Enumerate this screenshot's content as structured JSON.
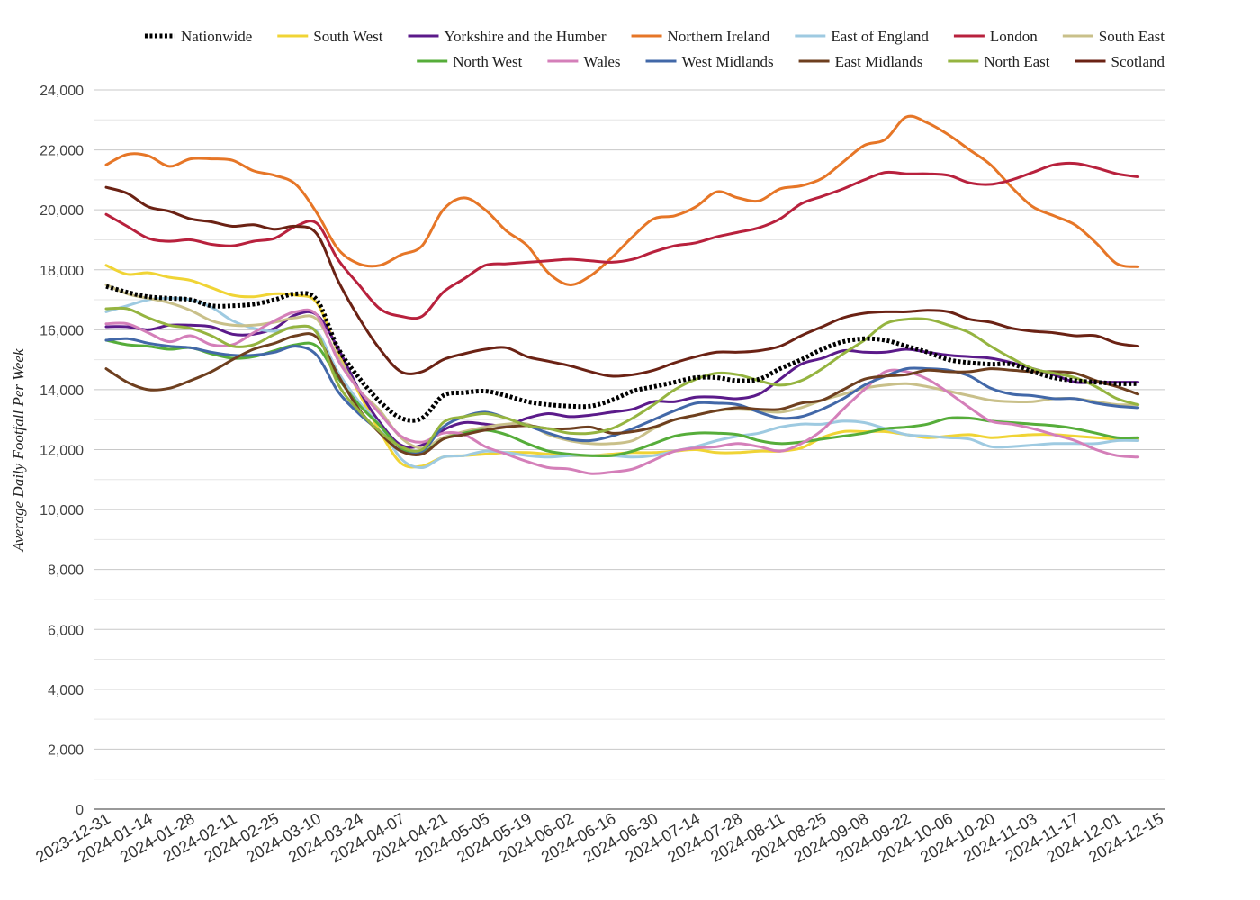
{
  "chart_data": {
    "type": "line",
    "ylabel": "Average Daily Footfall Per Week",
    "ylim": [
      0,
      24000
    ],
    "yticks": [
      0,
      2000,
      4000,
      6000,
      8000,
      10000,
      12000,
      14000,
      16000,
      18000,
      20000,
      22000,
      24000
    ],
    "ytick_labels": [
      "0",
      "2,000",
      "4,000",
      "6,000",
      "8,000",
      "10,000",
      "12,000",
      "14,000",
      "16,000",
      "18,000",
      "20,000",
      "22,000",
      "24,000"
    ],
    "grid": true,
    "legend_position": "top",
    "x_tick_labels": [
      "2023-12-31",
      "2024-01-14",
      "2024-01-28",
      "2024-02-11",
      "2024-02-25",
      "2024-03-10",
      "2024-03-24",
      "2024-04-07",
      "2024-04-21",
      "2024-05-05",
      "2024-05-19",
      "2024-06-02",
      "2024-06-16",
      "2024-06-30",
      "2024-07-14",
      "2024-07-28",
      "2024-08-11",
      "2024-08-25",
      "2024-09-08",
      "2024-09-22",
      "2024-10-06",
      "2024-10-20",
      "2024-11-03",
      "2024-11-17",
      "2024-12-01",
      "2024-12-15"
    ],
    "x": [
      "2023-12-31",
      "2024-01-07",
      "2024-01-14",
      "2024-01-21",
      "2024-01-28",
      "2024-02-04",
      "2024-02-11",
      "2024-02-18",
      "2024-02-25",
      "2024-03-03",
      "2024-03-10",
      "2024-03-17",
      "2024-03-24",
      "2024-03-31",
      "2024-04-07",
      "2024-04-14",
      "2024-04-21",
      "2024-04-28",
      "2024-05-05",
      "2024-05-12",
      "2024-05-19",
      "2024-05-26",
      "2024-06-02",
      "2024-06-09",
      "2024-06-16",
      "2024-06-23",
      "2024-06-30",
      "2024-07-07",
      "2024-07-14",
      "2024-07-21",
      "2024-07-28",
      "2024-08-04",
      "2024-08-11",
      "2024-08-18",
      "2024-08-25",
      "2024-09-01",
      "2024-09-08",
      "2024-09-15",
      "2024-09-22",
      "2024-09-29",
      "2024-10-06",
      "2024-10-13",
      "2024-10-20",
      "2024-10-27",
      "2024-11-03",
      "2024-11-10",
      "2024-11-17",
      "2024-11-24",
      "2024-12-01",
      "2024-12-08",
      "2024-12-15",
      "2024-12-22"
    ],
    "series": [
      {
        "name": "Nationwide",
        "color": "#000000",
        "dashed": true,
        "values": [
          17450,
          17250,
          17100,
          17050,
          17000,
          16800,
          16800,
          16850,
          17000,
          17200,
          17000,
          15400,
          14400,
          13600,
          13050,
          13050,
          13800,
          13900,
          13950,
          13800,
          13600,
          13500,
          13450,
          13450,
          13650,
          13950,
          14100,
          14250,
          14400,
          14400,
          14300,
          14350,
          14700,
          15000,
          15350,
          15600,
          15700,
          15650,
          15450,
          15250,
          15000,
          14900,
          14850,
          14850,
          14600,
          14400,
          14300,
          14250,
          14200,
          14200,
          14200,
          14200
        ]
      },
      {
        "name": "South West",
        "color": "#f0d435",
        "values": [
          18150,
          17850,
          17900,
          17750,
          17650,
          17400,
          17150,
          17100,
          17200,
          17150,
          16900,
          15300,
          13900,
          12600,
          11550,
          11450,
          11750,
          11800,
          11850,
          11900,
          11900,
          11850,
          11800,
          11800,
          11850,
          11900,
          11900,
          11950,
          12000,
          11900,
          11900,
          11950,
          11950,
          12050,
          12400,
          12600,
          12600,
          12600,
          12500,
          12400,
          12450,
          12500,
          12400,
          12450,
          12500,
          12500,
          12450,
          12400,
          12350,
          12350,
          12350,
          12350
        ]
      },
      {
        "name": "Yorkshire and the Humber",
        "color": "#5b1a8a",
        "values": [
          16100,
          16100,
          16000,
          16150,
          16150,
          16100,
          15850,
          15850,
          16050,
          16500,
          16500,
          15400,
          14000,
          12900,
          12150,
          12150,
          12650,
          12900,
          12850,
          12800,
          13050,
          13200,
          13100,
          13150,
          13250,
          13350,
          13600,
          13600,
          13750,
          13750,
          13700,
          13850,
          14350,
          14850,
          15050,
          15300,
          15250,
          15250,
          15350,
          15250,
          15150,
          15100,
          15050,
          14900,
          14700,
          14500,
          14250,
          14250,
          14250,
          14250,
          14250,
          14250
        ]
      },
      {
        "name": "Northern Ireland",
        "color": "#e67627",
        "values": [
          21500,
          21850,
          21800,
          21450,
          21700,
          21700,
          21650,
          21300,
          21150,
          20850,
          19900,
          18700,
          18200,
          18150,
          18500,
          18800,
          20000,
          20400,
          20000,
          19300,
          18800,
          17900,
          17500,
          17800,
          18400,
          19100,
          19700,
          19800,
          20100,
          20600,
          20400,
          20300,
          20700,
          20800,
          21050,
          21600,
          22150,
          22350,
          23100,
          22900,
          22500,
          22000,
          21500,
          20750,
          20100,
          19800,
          19500,
          18900,
          18200,
          18100,
          18100,
          18100
        ]
      },
      {
        "name": "East of England",
        "color": "#9ecae1",
        "values": [
          16600,
          16800,
          17000,
          17050,
          17000,
          16750,
          16300,
          16050,
          15950,
          16100,
          15950,
          14600,
          13600,
          12800,
          11700,
          11400,
          11750,
          11800,
          11950,
          11900,
          11800,
          11750,
          11800,
          11800,
          11800,
          11750,
          11800,
          11950,
          12100,
          12300,
          12450,
          12550,
          12750,
          12850,
          12850,
          12950,
          12900,
          12700,
          12500,
          12450,
          12400,
          12350,
          12100,
          12100,
          12150,
          12200,
          12200,
          12200,
          12300,
          12300,
          12300,
          12300
        ]
      },
      {
        "name": "London",
        "color": "#b8213d",
        "values": [
          19850,
          19450,
          19050,
          18950,
          19000,
          18850,
          18800,
          18950,
          19050,
          19450,
          19550,
          18350,
          17500,
          16700,
          16450,
          16450,
          17250,
          17700,
          18150,
          18200,
          18250,
          18300,
          18350,
          18300,
          18250,
          18350,
          18600,
          18800,
          18900,
          19100,
          19250,
          19400,
          19700,
          20200,
          20450,
          20700,
          21000,
          21250,
          21200,
          21200,
          21150,
          20900,
          20850,
          21000,
          21250,
          21500,
          21550,
          21400,
          21200,
          21100,
          21100,
          21100
        ]
      },
      {
        "name": "South East",
        "color": "#c9c08a",
        "values": [
          17500,
          17200,
          17050,
          16900,
          16650,
          16300,
          16150,
          16150,
          16250,
          16400,
          16350,
          15100,
          14000,
          13300,
          12400,
          12050,
          12400,
          12600,
          12750,
          12850,
          12850,
          12500,
          12300,
          12200,
          12200,
          12300,
          12700,
          13000,
          13150,
          13300,
          13350,
          13300,
          13250,
          13400,
          13650,
          13850,
          14050,
          14150,
          14200,
          14100,
          13950,
          13800,
          13650,
          13600,
          13600,
          13700,
          13700,
          13600,
          13500,
          13500,
          13500,
          13500
        ]
      },
      {
        "name": "North West",
        "color": "#56ad3a",
        "values": [
          15650,
          15500,
          15450,
          15350,
          15400,
          15200,
          15050,
          15100,
          15300,
          15500,
          15450,
          14400,
          13500,
          12800,
          12050,
          11900,
          12350,
          12550,
          12650,
          12500,
          12200,
          11950,
          11850,
          11800,
          11800,
          11950,
          12200,
          12450,
          12550,
          12550,
          12500,
          12300,
          12200,
          12250,
          12350,
          12450,
          12550,
          12700,
          12750,
          12850,
          13050,
          13050,
          12950,
          12900,
          12850,
          12800,
          12700,
          12550,
          12400,
          12400,
          12400,
          12400
        ]
      },
      {
        "name": "Wales",
        "color": "#d47fb9",
        "values": [
          16200,
          16200,
          15900,
          15600,
          15800,
          15500,
          15500,
          15900,
          16300,
          16600,
          16500,
          15000,
          14000,
          13200,
          12450,
          12250,
          12550,
          12500,
          12100,
          11850,
          11600,
          11400,
          11350,
          11200,
          11250,
          11350,
          11650,
          11950,
          12050,
          12100,
          12200,
          12100,
          11950,
          12200,
          12650,
          13350,
          14000,
          14600,
          14600,
          14350,
          13900,
          13400,
          12950,
          12850,
          12700,
          12500,
          12300,
          12000,
          11800,
          11750,
          11750,
          11750
        ]
      },
      {
        "name": "West Midlands",
        "color": "#4268a8",
        "values": [
          15650,
          15700,
          15550,
          15450,
          15400,
          15250,
          15150,
          15150,
          15250,
          15450,
          15150,
          13950,
          13200,
          12600,
          11950,
          11950,
          12750,
          13100,
          13250,
          13050,
          12800,
          12550,
          12350,
          12300,
          12450,
          12700,
          13000,
          13300,
          13550,
          13550,
          13500,
          13250,
          13050,
          13100,
          13350,
          13700,
          14150,
          14450,
          14700,
          14700,
          14650,
          14450,
          14050,
          13850,
          13800,
          13700,
          13700,
          13550,
          13450,
          13400,
          13400,
          13400
        ]
      },
      {
        "name": "East Midlands",
        "color": "#6e3f1f",
        "values": [
          14700,
          14250,
          14000,
          14050,
          14300,
          14600,
          15000,
          15350,
          15550,
          15800,
          15750,
          14500,
          13350,
          12550,
          11950,
          11850,
          12350,
          12500,
          12650,
          12750,
          12800,
          12700,
          12700,
          12750,
          12550,
          12600,
          12750,
          13000,
          13150,
          13300,
          13400,
          13350,
          13350,
          13550,
          13650,
          14000,
          14350,
          14450,
          14500,
          14650,
          14600,
          14600,
          14700,
          14650,
          14600,
          14600,
          14550,
          14300,
          14100,
          13850,
          13800,
          13800
        ]
      },
      {
        "name": "North East",
        "color": "#95b440",
        "values": [
          16700,
          16700,
          16400,
          16150,
          16050,
          15800,
          15450,
          15500,
          15850,
          16100,
          15900,
          14200,
          13300,
          12600,
          12100,
          12000,
          12900,
          13100,
          13200,
          13050,
          12800,
          12700,
          12550,
          12550,
          12700,
          13050,
          13500,
          14000,
          14350,
          14550,
          14500,
          14300,
          14150,
          14300,
          14700,
          15200,
          15650,
          16200,
          16350,
          16350,
          16150,
          15900,
          15450,
          15050,
          14700,
          14550,
          14400,
          14100,
          13700,
          13500,
          13500,
          13500
        ]
      },
      {
        "name": "Scotland",
        "color": "#6b2214",
        "values": [
          20750,
          20550,
          20100,
          19950,
          19700,
          19600,
          19450,
          19500,
          19350,
          19450,
          19200,
          17650,
          16400,
          15350,
          14600,
          14600,
          15000,
          15200,
          15350,
          15400,
          15100,
          14950,
          14800,
          14600,
          14450,
          14500,
          14650,
          14900,
          15100,
          15250,
          15250,
          15300,
          15450,
          15800,
          16100,
          16400,
          16550,
          16600,
          16600,
          16650,
          16600,
          16350,
          16250,
          16050,
          15950,
          15900,
          15800,
          15800,
          15550,
          15450,
          15450,
          15450
        ]
      }
    ]
  }
}
